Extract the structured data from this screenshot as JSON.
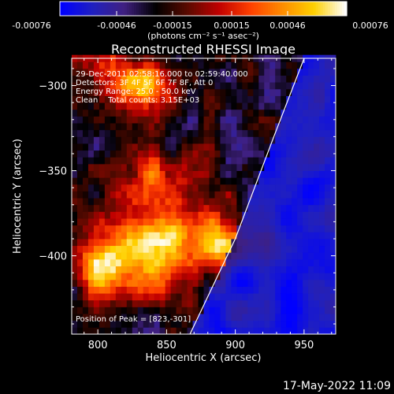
{
  "colorbar": {
    "tick_labels": [
      "-0.00076",
      "-0.00046",
      "-0.00015",
      "0.00015",
      "0.00046",
      "0.00076"
    ],
    "units": "(photons cm⁻² s⁻¹ asec⁻²)",
    "colors": [
      "#0000ff",
      "#2020c0",
      "#402080",
      "#000000",
      "#5a0a00",
      "#c00000",
      "#ff4000",
      "#ff8c00",
      "#ffd000",
      "#ffffff"
    ]
  },
  "chart_data": {
    "type": "heatmap",
    "title": "Reconstructed RHESSI Image",
    "xlabel": "Heliocentric X (arcsec)",
    "ylabel": "Heliocentric Y (arcsec)",
    "xlim": [
      781,
      973
    ],
    "ylim": [
      -446,
      -284
    ],
    "xticks": [
      800,
      850,
      900,
      950
    ],
    "yticks": [
      -300,
      -350,
      -400
    ],
    "xtick_labels": [
      "800",
      "850",
      "900",
      "950"
    ],
    "ytick_labels": [
      "−300",
      "−350",
      "−400"
    ],
    "annotations": [
      "29-Dec-2011 02:58:16.000 to 02:59:40.000",
      "Detectors: 3F 4F 5F 6F 7F 8F, Att 0",
      "Energy Range: 25.0 - 50.0 keV",
      "Clean    Total counts: 3.15E+03"
    ],
    "peak_label": "Position of Peak = [823,-301]",
    "peak": [
      823,
      -301
    ],
    "limb_points": [
      [
        867,
        -446
      ],
      [
        900,
        -390
      ],
      [
        928,
        -330
      ],
      [
        950,
        -284
      ]
    ],
    "hot_sources": [
      {
        "x": 830,
        "y": -300,
        "sx": 14,
        "sy": 10,
        "w": 1.0
      },
      {
        "x": 805,
        "y": -290,
        "sx": 12,
        "sy": 10,
        "w": 0.55
      },
      {
        "x": 830,
        "y": -350,
        "sx": 10,
        "sy": 8,
        "w": 0.5
      },
      {
        "x": 850,
        "y": -385,
        "sx": 26,
        "sy": 14,
        "w": 0.85
      },
      {
        "x": 820,
        "y": -400,
        "sx": 22,
        "sy": 12,
        "w": 0.8
      },
      {
        "x": 890,
        "y": -395,
        "sx": 12,
        "sy": 10,
        "w": 0.9
      },
      {
        "x": 800,
        "y": -410,
        "sx": 12,
        "sy": 14,
        "w": 0.65
      },
      {
        "x": 860,
        "y": -350,
        "sx": 14,
        "sy": 10,
        "w": 0.45
      },
      {
        "x": 845,
        "y": -420,
        "sx": 12,
        "sy": 8,
        "w": 0.55
      }
    ]
  },
  "footer": {
    "timestamp": "17-May-2022 11:09"
  }
}
